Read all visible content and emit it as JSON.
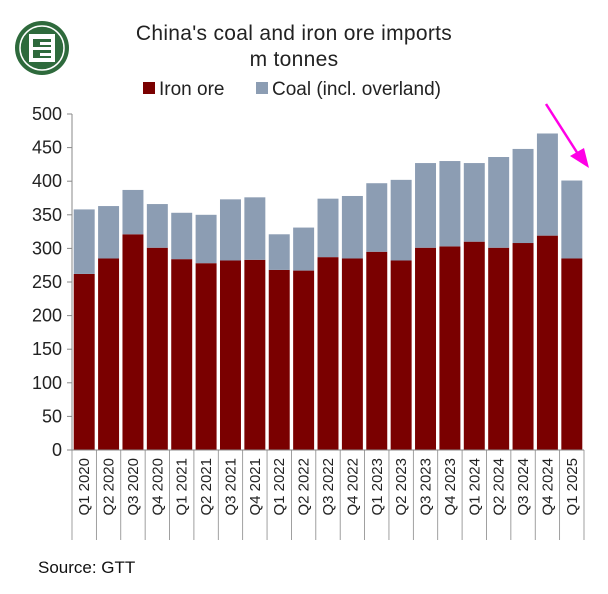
{
  "chart_data": {
    "type": "bar",
    "stacked": true,
    "title": "China's coal and iron ore imports",
    "subtitle": "m tonnes",
    "categories": [
      "Q1 2020",
      "Q2 2020",
      "Q3 2020",
      "Q4 2020",
      "Q1 2021",
      "Q2 2021",
      "Q3 2021",
      "Q4 2021",
      "Q1 2022",
      "Q2 2022",
      "Q3 2022",
      "Q4 2022",
      "Q1 2023",
      "Q2 2023",
      "Q3 2023",
      "Q4 2023",
      "Q1 2024",
      "Q2 2024",
      "Q3 2024",
      "Q4 2024",
      "Q1 2025"
    ],
    "series": [
      {
        "name": "Iron ore",
        "color": "#7a0000",
        "values": [
          262,
          285,
          321,
          301,
          284,
          278,
          282,
          283,
          268,
          267,
          287,
          285,
          295,
          282,
          301,
          303,
          310,
          301,
          308,
          319,
          285
        ]
      },
      {
        "name": "Coal (incl. overland)",
        "color": "#8c9db3",
        "values": [
          96,
          78,
          66,
          65,
          69,
          72,
          91,
          93,
          53,
          64,
          87,
          93,
          102,
          120,
          126,
          127,
          117,
          135,
          140,
          152,
          116
        ]
      }
    ],
    "ylim": [
      0,
      500
    ],
    "yticks": [
      "0",
      "50",
      "100",
      "150",
      "200",
      "250",
      "300",
      "350",
      "400",
      "450",
      "500"
    ],
    "grid": false,
    "legend_position": "top",
    "annotation": "arrow pointing down toward Q1 2025",
    "xlabel": "",
    "ylabel": ""
  },
  "source": "Source: GTT",
  "logo": {
    "icon": "brand-logo-icon",
    "color": "#2e6a3c"
  },
  "annotation": {
    "icon": "down-arrow-icon",
    "color": "#ff00e6"
  },
  "colors": {
    "axis": "#888888",
    "divider": "#7a0000"
  }
}
